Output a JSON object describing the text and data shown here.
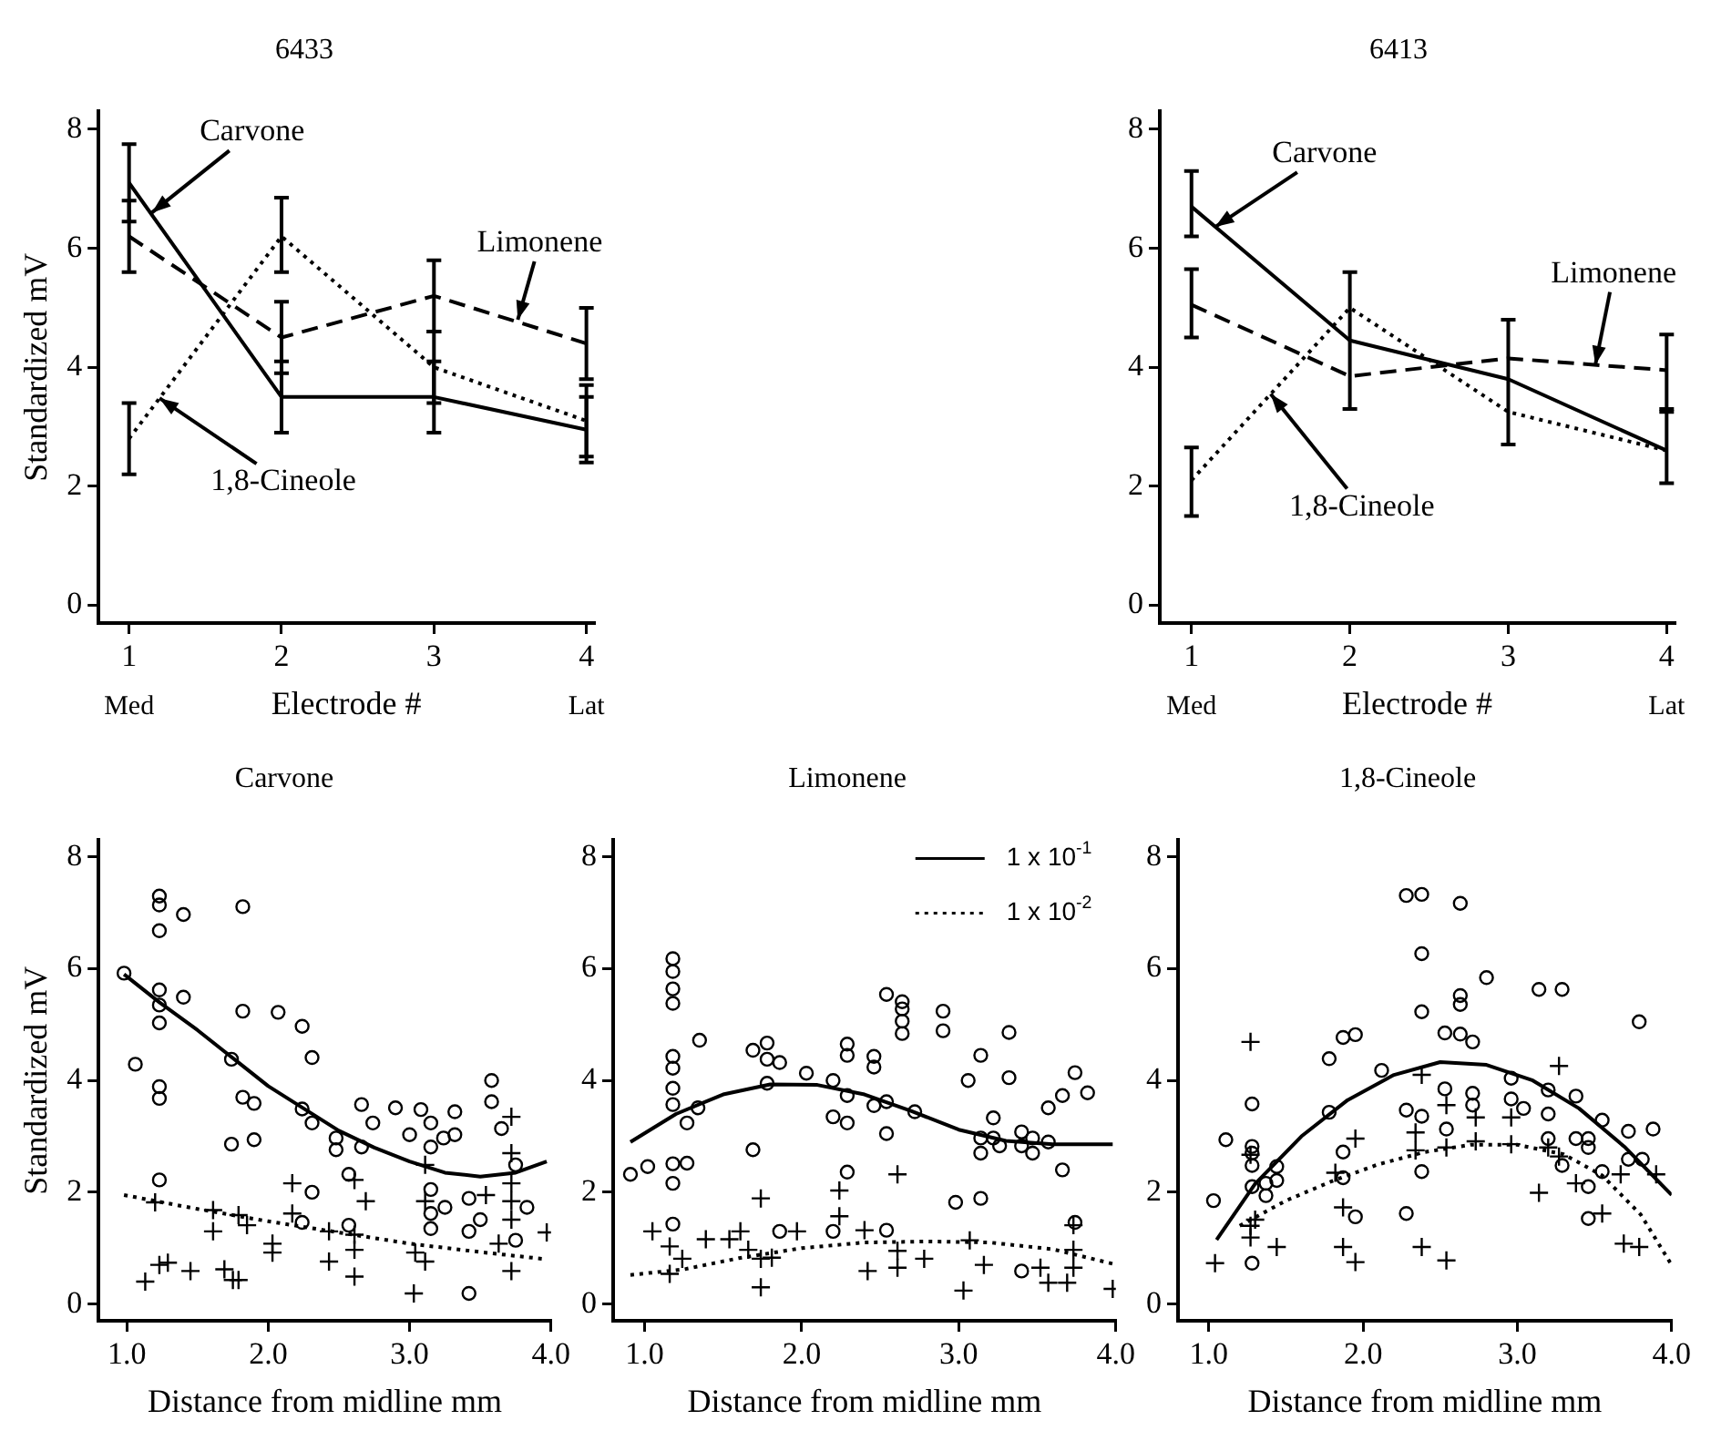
{
  "chart_data": [
    {
      "type": "line",
      "title": "6433",
      "xlabel": "Electrode #",
      "ylabel": "Standardized mV",
      "x": [
        1,
        2,
        3,
        4
      ],
      "xlim": [
        0.8,
        4.05
      ],
      "xticks": [
        1,
        2,
        3,
        4
      ],
      "ylim": [
        -0.3,
        8.3
      ],
      "yticks": [
        0,
        2,
        4,
        6,
        8
      ],
      "annotations": [
        "Med",
        "Lat",
        {
          "text": "Carvone",
          "x": 1.15,
          "y": 6.6
        },
        {
          "text": "Limonene",
          "x": 3.55,
          "y": 4.8
        },
        {
          "text": "1,8-Cineole",
          "x": 1.2,
          "y": 3.48
        }
      ],
      "series": [
        {
          "color": "#000000",
          "line_style": "solid",
          "values": [
            7.1,
            3.5,
            3.5,
            2.95
          ],
          "errors": [
            [
              6.45,
              7.75
            ],
            [
              2.9,
              4.1
            ],
            [
              2.9,
              4.1
            ],
            [
              2.4,
              3.5
            ]
          ]
        },
        {
          "color": "#000000",
          "line_style": "dashed",
          "values": [
            6.2,
            4.5,
            5.2,
            4.4
          ],
          "errors": [
            [
              5.6,
              6.8
            ],
            [
              3.9,
              5.1
            ],
            [
              4.6,
              5.8
            ],
            [
              3.8,
              5.0
            ]
          ]
        },
        {
          "color": "#000000",
          "line_style": "dotted",
          "values": [
            2.8,
            6.2,
            4.0,
            3.1
          ],
          "errors": [
            [
              2.2,
              3.4
            ],
            [
              5.6,
              6.85
            ],
            [
              3.4,
              4.6
            ],
            [
              2.5,
              3.7
            ]
          ]
        }
      ]
    },
    {
      "type": "line",
      "title": "6413",
      "xlabel": "Electrode #",
      "x": [
        1,
        2,
        3,
        4
      ],
      "xlim": [
        0.8,
        4.05
      ],
      "xticks": [
        1,
        2,
        3,
        4
      ],
      "ylim": [
        -0.3,
        8.3
      ],
      "yticks": [
        0,
        2,
        4,
        6,
        8
      ],
      "annotations": [
        "Med",
        "Lat",
        {
          "text": "Carvone",
          "x": 1.15,
          "y": 6.36
        },
        {
          "text": "Limonene",
          "x": 3.55,
          "y": 4.04
        },
        {
          "text": "1,8-Cineole",
          "x": 1.5,
          "y": 3.55
        }
      ],
      "series": [
        {
          "color": "#000000",
          "line_style": "solid",
          "values": [
            6.7,
            4.45,
            3.8,
            2.6
          ],
          "errors": [
            [
              6.2,
              7.3
            ],
            [
              3.3,
              5.6
            ],
            [
              2.7,
              4.8
            ],
            [
              2.05,
              3.25
            ]
          ]
        },
        {
          "color": "#000000",
          "line_style": "dashed",
          "values": [
            5.05,
            3.85,
            4.15,
            3.95
          ],
          "errors": [
            [
              4.5,
              5.65
            ],
            null,
            null,
            [
              3.3,
              4.55
            ]
          ]
        },
        {
          "color": "#000000",
          "line_style": "dotted",
          "values": [
            2.1,
            5.0,
            3.25,
            2.6
          ],
          "errors": [
            [
              1.5,
              2.65
            ],
            null,
            null,
            null
          ]
        }
      ]
    },
    {
      "type": "scatter",
      "title": "Carvone",
      "xlabel": "Distance from midline mm",
      "ylabel": "Standardized mV",
      "xlim": [
        0.8,
        4.0
      ],
      "xticks": [
        {
          "value": 1,
          "label": "1.0"
        },
        {
          "value": 2,
          "label": "2.0"
        },
        {
          "value": 3,
          "label": "3.0"
        },
        {
          "value": 4,
          "label": "4.0"
        }
      ],
      "ylim": [
        -0.3,
        8.3
      ],
      "yticks": [
        0,
        2,
        4,
        6,
        8
      ],
      "series": [
        {
          "marker": "circle",
          "color": "#000000",
          "x": [
            0.98,
            1.06,
            1.23,
            1.23,
            1.23,
            1.23,
            1.23,
            1.23,
            1.23,
            1.23,
            1.23,
            1.4,
            1.4,
            1.82,
            1.82,
            1.74,
            1.82,
            1.9,
            1.74,
            1.9,
            2.07,
            2.24,
            2.31,
            2.24,
            2.31,
            2.31,
            2.24,
            2.48,
            2.48,
            2.57,
            2.57,
            2.66,
            2.66,
            2.74,
            2.9,
            3.0,
            3.08,
            3.15,
            3.15,
            3.15,
            3.15,
            3.15,
            3.24,
            3.32,
            3.32,
            3.42,
            3.42,
            3.42,
            3.5,
            3.58,
            3.58,
            3.65,
            3.75,
            3.75,
            3.83,
            3.25
          ],
          "values": [
            5.92,
            4.29,
            7.3,
            7.14,
            6.68,
            5.62,
            5.35,
            5.03,
            3.89,
            3.68,
            2.22,
            6.97,
            5.49,
            7.11,
            5.24,
            4.38,
            3.7,
            3.59,
            2.86,
            2.94,
            5.22,
            4.97,
            4.41,
            3.49,
            3.24,
            2.0,
            1.46,
            2.97,
            2.76,
            2.32,
            1.41,
            3.57,
            2.81,
            3.24,
            3.51,
            3.03,
            3.48,
            3.24,
            2.81,
            2.05,
            1.62,
            1.35,
            2.97,
            3.44,
            3.03,
            1.89,
            1.3,
            0.19,
            1.51,
            4.0,
            3.62,
            3.14,
            2.49,
            1.14,
            1.73,
            1.73
          ]
        },
        {
          "marker": "cross",
          "color": "#000000",
          "x": [
            1.13,
            1.2,
            1.23,
            1.29,
            1.45,
            1.61,
            1.61,
            1.69,
            1.75,
            1.79,
            1.79,
            1.85,
            2.03,
            2.03,
            2.17,
            2.17,
            2.43,
            2.43,
            2.61,
            2.61,
            2.61,
            2.61,
            2.69,
            3.03,
            3.04,
            3.11,
            3.11,
            3.11,
            3.54,
            3.63,
            3.72,
            3.72,
            3.72,
            3.72,
            3.72,
            3.72,
            3.97
          ],
          "values": [
            0.4,
            1.82,
            0.7,
            0.74,
            0.59,
            1.68,
            1.3,
            0.62,
            0.43,
            0.43,
            1.59,
            1.41,
            1.08,
            0.92,
            2.16,
            1.62,
            1.3,
            0.76,
            2.22,
            1.24,
            0.97,
            0.49,
            1.84,
            0.19,
            0.92,
            0.76,
            1.84,
            2.49,
            1.95,
            1.08,
            3.35,
            2.7,
            2.16,
            1.84,
            1.51,
            0.59,
            1.28
          ]
        },
        {
          "type": "line",
          "line_style": "solid",
          "color": "#000000",
          "x": [
            0.98,
            1.23,
            1.5,
            1.75,
            2.0,
            2.25,
            2.5,
            2.75,
            3.0,
            3.25,
            3.5,
            3.75,
            3.97
          ],
          "values": [
            5.9,
            5.4,
            4.9,
            4.4,
            3.9,
            3.5,
            3.1,
            2.8,
            2.55,
            2.35,
            2.28,
            2.35,
            2.55
          ]
        },
        {
          "type": "line",
          "line_style": "dotted",
          "color": "#000000",
          "x": [
            0.98,
            1.5,
            2.0,
            2.5,
            3.0,
            3.5,
            3.97
          ],
          "values": [
            1.95,
            1.7,
            1.48,
            1.28,
            1.08,
            0.93,
            0.8
          ]
        }
      ]
    },
    {
      "type": "scatter",
      "title": "Limonene",
      "xlabel": "Distance from midline mm",
      "xlim": [
        0.8,
        4.0
      ],
      "xticks": [
        {
          "value": 1,
          "label": "1.0"
        },
        {
          "value": 2,
          "label": "2.0"
        },
        {
          "value": 3,
          "label": "3.0"
        },
        {
          "value": 4,
          "label": "4.0"
        }
      ],
      "ylim": [
        -0.3,
        8.3
      ],
      "yticks": [
        0,
        2,
        4,
        6,
        8
      ],
      "legend": "top right",
      "series": [
        {
          "marker": "circle",
          "color": "#000000",
          "x": [
            0.91,
            1.02,
            1.18,
            1.18,
            1.18,
            1.18,
            1.18,
            1.18,
            1.18,
            1.18,
            1.18,
            1.18,
            1.18,
            1.27,
            1.27,
            1.35,
            1.34,
            1.69,
            1.69,
            1.78,
            1.78,
            1.78,
            1.86,
            1.86,
            2.03,
            2.2,
            2.2,
            2.2,
            2.29,
            2.29,
            2.29,
            2.29,
            2.29,
            2.46,
            2.46,
            2.46,
            2.54,
            2.54,
            2.54,
            2.54,
            2.64,
            2.64,
            2.64,
            2.64,
            2.72,
            2.9,
            2.9,
            2.98,
            3.06,
            3.14,
            3.14,
            3.14,
            3.14,
            3.22,
            3.22,
            3.32,
            3.32,
            3.26,
            3.4,
            3.4,
            3.4,
            3.47,
            3.47,
            3.57,
            3.57,
            3.66,
            3.66,
            3.74,
            3.74,
            3.82
          ],
          "values": [
            2.32,
            2.46,
            6.18,
            5.95,
            5.64,
            5.38,
            4.43,
            4.22,
            3.86,
            3.57,
            2.51,
            2.16,
            1.43,
            3.24,
            2.52,
            4.72,
            3.51,
            4.54,
            2.76,
            4.67,
            4.38,
            3.95,
            4.32,
            1.3,
            4.13,
            4.0,
            3.35,
            1.3,
            4.65,
            4.45,
            3.73,
            3.24,
            2.36,
            4.43,
            4.24,
            3.55,
            5.54,
            3.62,
            3.05,
            1.32,
            5.41,
            5.28,
            5.06,
            4.84,
            3.44,
            5.24,
            4.89,
            1.82,
            4.0,
            4.45,
            2.7,
            2.97,
            1.89,
            3.33,
            2.97,
            4.86,
            4.05,
            2.83,
            3.08,
            2.83,
            0.59,
            2.97,
            2.7,
            3.51,
            2.9,
            2.4,
            3.73,
            4.14,
            1.46,
            3.78
          ]
        },
        {
          "marker": "cross",
          "color": "#000000",
          "x": [
            1.05,
            1.16,
            1.16,
            1.24,
            1.39,
            1.54,
            1.61,
            1.66,
            1.74,
            1.74,
            1.74,
            1.81,
            1.97,
            2.24,
            2.24,
            2.4,
            2.42,
            2.61,
            2.61,
            2.61,
            2.78,
            3.03,
            3.07,
            3.16,
            3.52,
            3.57,
            3.69,
            3.73,
            3.73,
            3.73,
            3.98
          ],
          "values": [
            1.3,
            1.03,
            0.54,
            0.81,
            1.16,
            1.16,
            1.3,
            0.97,
            1.89,
            0.81,
            0.3,
            0.83,
            1.3,
            2.03,
            1.57,
            1.32,
            0.59,
            2.32,
            0.95,
            0.65,
            0.81,
            0.24,
            1.14,
            0.7,
            0.65,
            0.38,
            0.38,
            1.41,
            0.97,
            0.65,
            0.27
          ]
        },
        {
          "type": "line",
          "name": "1 x 10$^{-1}$",
          "line_style": "solid",
          "color": "#000000",
          "x": [
            0.91,
            1.2,
            1.5,
            1.8,
            2.1,
            2.4,
            2.7,
            3.0,
            3.3,
            3.6,
            3.98
          ],
          "values": [
            2.9,
            3.4,
            3.75,
            3.93,
            3.92,
            3.75,
            3.45,
            3.12,
            2.92,
            2.86,
            2.86
          ]
        },
        {
          "type": "line",
          "name": "1 x 10$^{-2}$",
          "line_style": "dotted",
          "color": "#000000",
          "x": [
            0.91,
            1.25,
            1.6,
            2.0,
            2.4,
            2.8,
            3.2,
            3.6,
            3.98
          ],
          "values": [
            0.52,
            0.62,
            0.82,
            1.0,
            1.1,
            1.12,
            1.1,
            0.98,
            0.72
          ]
        }
      ]
    },
    {
      "type": "scatter",
      "title": "1,8-Cineole",
      "xlabel": "Distance from midline mm",
      "xlim": [
        0.8,
        4.0
      ],
      "xticks": [
        {
          "value": 1,
          "label": "1.0"
        },
        {
          "value": 2,
          "label": "2.0"
        },
        {
          "value": 3,
          "label": "3.0"
        },
        {
          "value": 4,
          "label": "4.0"
        }
      ],
      "ylim": [
        -0.3,
        8.3
      ],
      "yticks": [
        0,
        2,
        4,
        6,
        8
      ],
      "series": [
        {
          "marker": "circle",
          "color": "#000000",
          "x": [
            1.03,
            1.11,
            1.28,
            1.28,
            1.28,
            1.28,
            1.28,
            1.28,
            1.37,
            1.37,
            1.44,
            1.44,
            1.78,
            1.78,
            1.87,
            1.87,
            1.87,
            1.95,
            1.95,
            2.12,
            2.28,
            2.38,
            2.38,
            2.38,
            2.38,
            2.38,
            2.28,
            2.28,
            2.53,
            2.53,
            2.54,
            2.63,
            2.63,
            2.63,
            2.63,
            2.71,
            2.71,
            2.71,
            2.8,
            2.96,
            2.96,
            3.04,
            3.14,
            3.29,
            3.2,
            3.2,
            3.2,
            3.29,
            3.38,
            3.38,
            3.46,
            3.46,
            3.46,
            3.46,
            3.55,
            3.55,
            3.72,
            3.72,
            3.79,
            3.81,
            3.88
          ],
          "values": [
            1.85,
            2.94,
            3.58,
            2.82,
            2.7,
            2.48,
            2.1,
            0.73,
            2.16,
            1.94,
            2.46,
            2.21,
            4.39,
            3.43,
            4.77,
            2.72,
            2.26,
            4.82,
            1.56,
            4.18,
            7.31,
            7.33,
            6.27,
            5.23,
            3.36,
            2.37,
            3.47,
            1.62,
            4.85,
            3.85,
            3.13,
            7.17,
            5.52,
            5.36,
            4.83,
            4.69,
            3.77,
            3.56,
            5.84,
            4.04,
            3.67,
            3.5,
            5.63,
            5.63,
            3.83,
            3.4,
            2.96,
            2.48,
            3.72,
            2.96,
            2.96,
            2.8,
            2.1,
            1.53,
            3.29,
            2.37,
            3.09,
            2.59,
            5.05,
            2.59,
            3.13
          ]
        },
        {
          "marker": "cross",
          "color": "#000000",
          "x": [
            1.04,
            1.27,
            1.27,
            1.27,
            1.3,
            1.27,
            1.44,
            1.82,
            1.87,
            1.87,
            1.95,
            1.95,
            2.34,
            2.34,
            2.38,
            2.38,
            2.54,
            2.54,
            2.54,
            2.73,
            2.73,
            2.96,
            2.96,
            3.14,
            3.2,
            3.27,
            3.27,
            3.38,
            3.55,
            3.67,
            3.69,
            3.79,
            3.9
          ],
          "values": [
            0.73,
            4.69,
            2.67,
            1.4,
            1.51,
            1.19,
            1.02,
            2.35,
            1.73,
            1.02,
            0.75,
            2.96,
            3.07,
            2.75,
            4.1,
            1.02,
            0.78,
            3.56,
            2.8,
            3.34,
            2.91,
            3.34,
            2.86,
            1.99,
            2.8,
            4.26,
            2.64,
            2.16,
            1.62,
            2.32,
            1.08,
            1.02,
            2.32
          ]
        },
        {
          "type": "line",
          "line_style": "solid",
          "color": "#000000",
          "x": [
            1.05,
            1.3,
            1.6,
            1.9,
            2.2,
            2.5,
            2.8,
            3.1,
            3.4,
            3.7,
            4.0
          ],
          "values": [
            1.15,
            2.15,
            3.0,
            3.65,
            4.1,
            4.33,
            4.28,
            4.0,
            3.5,
            2.8,
            1.95
          ]
        },
        {
          "type": "line",
          "line_style": "dotted",
          "color": "#000000",
          "x": [
            1.2,
            1.5,
            1.8,
            2.1,
            2.4,
            2.7,
            3.0,
            3.3,
            3.55,
            3.8,
            4.0
          ],
          "values": [
            1.4,
            1.85,
            2.2,
            2.5,
            2.72,
            2.85,
            2.85,
            2.68,
            2.3,
            1.6,
            0.7
          ]
        }
      ]
    }
  ]
}
